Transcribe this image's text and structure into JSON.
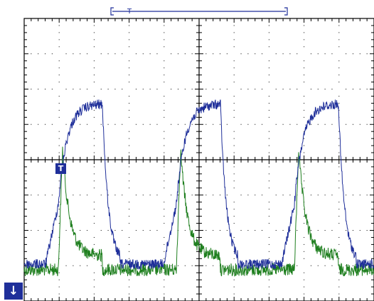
{
  "scope": {
    "trigger_label": "T",
    "trigger_level_label": "T",
    "ground_marker_glyph": "↓",
    "grid": {
      "divisions_x": 10,
      "divisions_y": 8,
      "minor_per_division": 5
    },
    "colors": {
      "background": "#ffffff",
      "grid": "#000000",
      "channel_1": "#1f2f9a",
      "channel_2": "#1f7f1f",
      "marker": "#1f2f9a"
    },
    "channels": [
      {
        "id": "ch1",
        "color": "#1f2f9a",
        "shape": "square-pulse"
      },
      {
        "id": "ch2",
        "color": "#1f7f1f",
        "shape": "spike-decay"
      }
    ],
    "icons": {
      "ground_marker": "down-arrow-icon",
      "trigger_position": "trigger-bracket-icon"
    }
  }
}
